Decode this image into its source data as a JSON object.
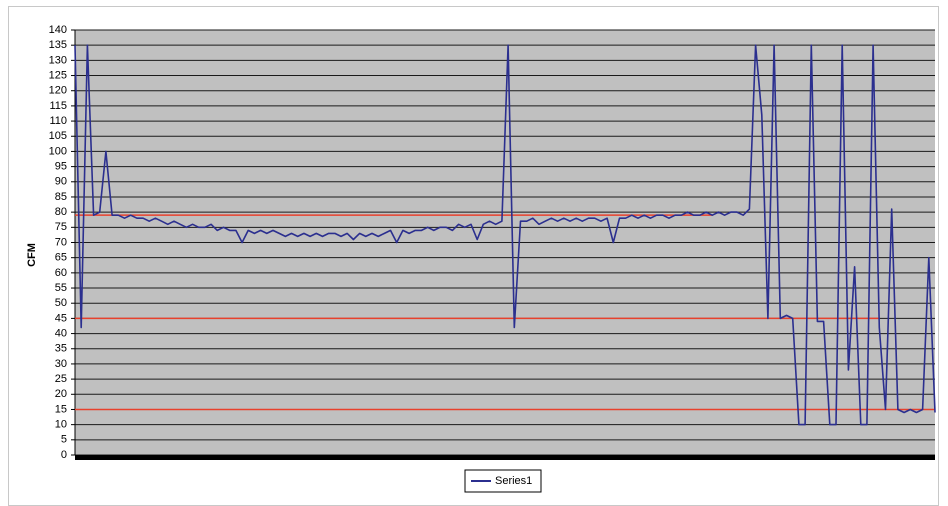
{
  "chart_data": {
    "type": "line",
    "y_label": "CFM",
    "categories": [
      null,
      null,
      null,
      null,
      null,
      null,
      null,
      null,
      null,
      null,
      null,
      null,
      null,
      null,
      null,
      null,
      null,
      null,
      null,
      null,
      null,
      null,
      null,
      null,
      null,
      null,
      null,
      null,
      null,
      null,
      null,
      null,
      null,
      null,
      null,
      null,
      null,
      null,
      null,
      null,
      null,
      null,
      null,
      null,
      null,
      null,
      null,
      null,
      null,
      null,
      null,
      null,
      null,
      null,
      null,
      null,
      null,
      null,
      null,
      null,
      null,
      null,
      null,
      null,
      null,
      null,
      null,
      null,
      null,
      null,
      null,
      null,
      null,
      null,
      null,
      null,
      null,
      null,
      null,
      null,
      null,
      null,
      null,
      null,
      null,
      null,
      null,
      null,
      null,
      null,
      null,
      null,
      null,
      null,
      null,
      null,
      null,
      null,
      null,
      null,
      null,
      null,
      null,
      null,
      null,
      null,
      null,
      null,
      null,
      null,
      null,
      null,
      null,
      null,
      null,
      null,
      null,
      null,
      null,
      null,
      null,
      null,
      null,
      null,
      null,
      null,
      null,
      null,
      null,
      null,
      null,
      null,
      null,
      null,
      null,
      null,
      null,
      null,
      null,
      null
    ],
    "series": [
      {
        "name": "Series1",
        "color": "#2b2f8f",
        "values": [
          135,
          42,
          135,
          79,
          80,
          100,
          79,
          79,
          78,
          79,
          78,
          78,
          77,
          78,
          77,
          76,
          77,
          76,
          75,
          76,
          75,
          75,
          76,
          74,
          75,
          74,
          74,
          70,
          74,
          73,
          74,
          73,
          74,
          73,
          72,
          73,
          72,
          73,
          72,
          73,
          72,
          73,
          73,
          72,
          73,
          71,
          73,
          72,
          73,
          72,
          73,
          74,
          70,
          74,
          73,
          74,
          74,
          75,
          74,
          75,
          75,
          74,
          76,
          75,
          76,
          71,
          76,
          77,
          76,
          77,
          135,
          42,
          77,
          77,
          78,
          76,
          77,
          78,
          77,
          78,
          77,
          78,
          77,
          78,
          78,
          77,
          78,
          70,
          78,
          78,
          79,
          78,
          79,
          78,
          79,
          79,
          78,
          79,
          79,
          80,
          79,
          79,
          80,
          79,
          80,
          79,
          80,
          80,
          79,
          81,
          135,
          112,
          45,
          135,
          45,
          46,
          45,
          10,
          10,
          135,
          44,
          44,
          10,
          10,
          135,
          28,
          62,
          10,
          10,
          135,
          42,
          15,
          81,
          15,
          14,
          15,
          14,
          15,
          65,
          14
        ]
      }
    ],
    "reference_lines": [
      {
        "value": 79,
        "to": 103,
        "color": "#e8412c"
      },
      {
        "value": 45,
        "to": 130,
        "color": "#e8412c"
      },
      {
        "value": 15,
        "to": 139,
        "color": "#e8412c"
      }
    ],
    "ylim": [
      0,
      140
    ],
    "yticks": [
      0,
      5,
      10,
      15,
      20,
      25,
      30,
      35,
      40,
      45,
      50,
      55,
      60,
      65,
      70,
      75,
      80,
      85,
      90,
      95,
      100,
      105,
      110,
      115,
      120,
      125,
      130,
      135,
      140
    ],
    "grid": true,
    "plot_background": "#c0c0c0",
    "legend": "bottom"
  }
}
